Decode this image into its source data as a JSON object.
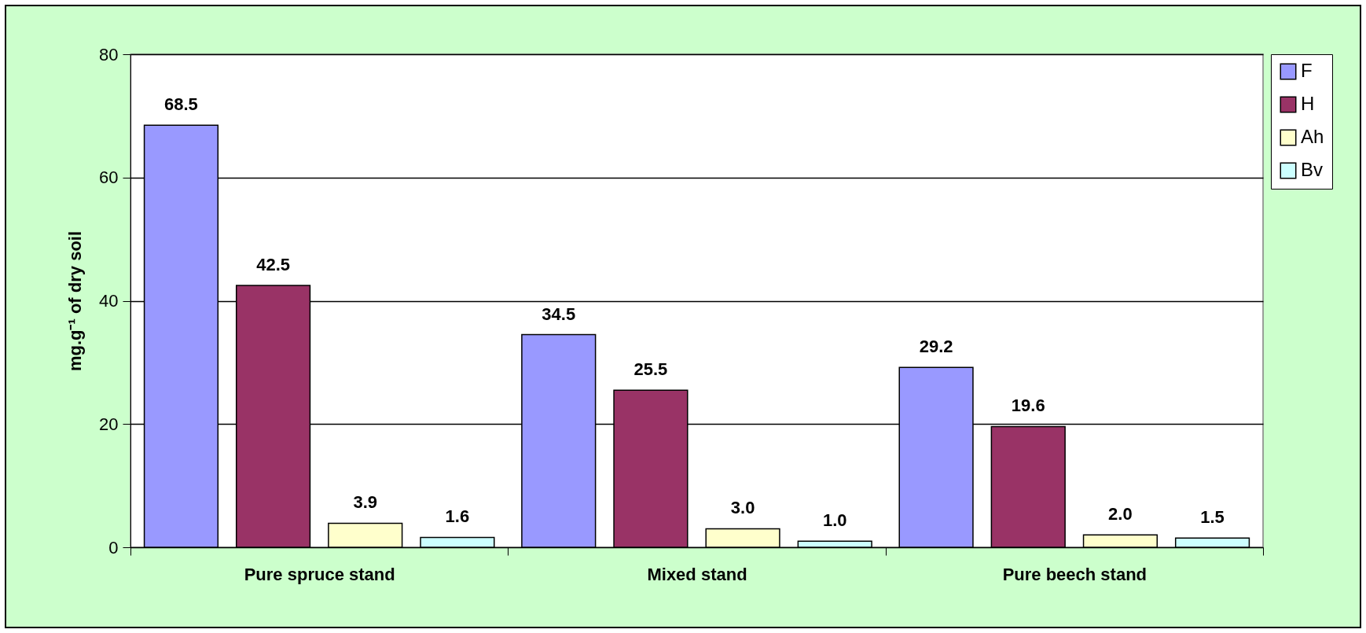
{
  "chart_data": {
    "type": "bar",
    "ylabel": "mg.g⁻¹ of dry soil",
    "categories": [
      "Pure spruce stand",
      "Mixed stand",
      "Pure beech stand"
    ],
    "series": [
      {
        "name": "F",
        "color": "#9999ff",
        "values": [
          68.5,
          34.5,
          29.2
        ]
      },
      {
        "name": "H",
        "color": "#993366",
        "values": [
          42.5,
          25.5,
          19.6
        ]
      },
      {
        "name": "Ah",
        "color": "#ffffcc",
        "values": [
          3.9,
          3.0,
          2.0
        ]
      },
      {
        "name": "Bv",
        "color": "#ccffff",
        "values": [
          1.6,
          1.0,
          1.5
        ]
      }
    ],
    "value_labels": [
      [
        "68.5",
        "34.5",
        "29.2"
      ],
      [
        "42.5",
        "25.5",
        "19.6"
      ],
      [
        "3.9",
        "3.0",
        "2.0"
      ],
      [
        "1.6",
        "1.0",
        "1.5"
      ]
    ],
    "ylim": [
      0,
      80
    ],
    "yticks": [
      0,
      20,
      40,
      60,
      80
    ],
    "grid": "y",
    "legend": "right"
  }
}
